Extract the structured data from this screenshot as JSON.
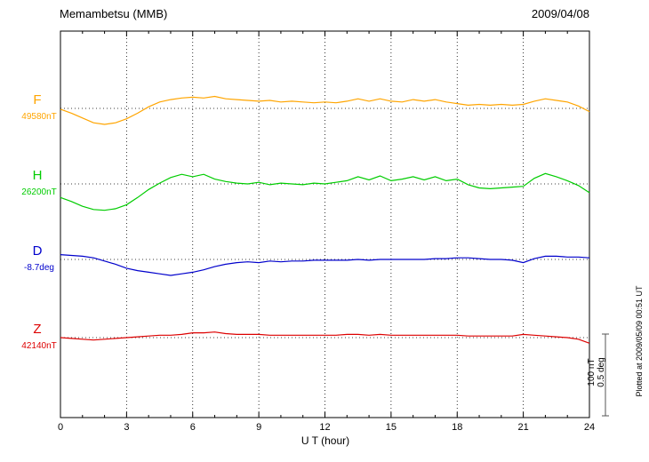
{
  "header": {
    "title": "Memambetsu (MMB)",
    "date": "2009/04/08"
  },
  "axis": {
    "xlabel": "U T (hour)"
  },
  "scale_bar": {
    "label_nt": "100 nT",
    "label_deg": "0.5 deg"
  },
  "footer_note": "Plotted at 2009/05/09 00:51 UT",
  "chart_data": {
    "type": "line",
    "title": "Memambetsu (MMB) magnetogram 2009/04/08",
    "xlabel": "U T (hour)",
    "x_range": [
      0,
      24
    ],
    "x_ticks": [
      0,
      3,
      6,
      9,
      12,
      15,
      18,
      21,
      24
    ],
    "sample_interval_hours": 0.5,
    "grid": "dotted vertical at 3-hour intervals, dotted horizontal baseline per trace",
    "scale_divisions": {
      "nT_per_division": 100,
      "deg_per_division": 0.5
    },
    "series": [
      {
        "name": "F",
        "unit": "nT",
        "base": 49580,
        "base_label": "49580nT",
        "color": "#FFA500",
        "units_per_division": 100,
        "values": [
          49579,
          49574,
          49568,
          49562,
          49560,
          49562,
          49567,
          49574,
          49582,
          49588,
          49591,
          49593,
          49594,
          49593,
          49595,
          49592,
          49591,
          49590,
          49589,
          49590,
          49588,
          49589,
          49588,
          49587,
          49588,
          49587,
          49589,
          49592,
          49589,
          49592,
          49589,
          49588,
          49591,
          49589,
          49591,
          49588,
          49586,
          49584,
          49585,
          49584,
          49585,
          49584,
          49585,
          49589,
          49592,
          49590,
          49588,
          49583,
          49576
        ]
      },
      {
        "name": "H",
        "unit": "nT",
        "base": 26200,
        "base_label": "26200nT",
        "color": "#00CC00",
        "units_per_division": 100,
        "values": [
          26183,
          26178,
          26172,
          26168,
          26167,
          26169,
          26174,
          26183,
          26193,
          26201,
          26208,
          26212,
          26209,
          26212,
          26206,
          26203,
          26201,
          26200,
          26202,
          26199,
          26201,
          26200,
          26199,
          26201,
          26200,
          26202,
          26204,
          26209,
          26205,
          26210,
          26204,
          26206,
          26209,
          26205,
          26209,
          26204,
          26206,
          26199,
          26195,
          26194,
          26195,
          26196,
          26197,
          26207,
          26213,
          26209,
          26204,
          26198,
          26189
        ]
      },
      {
        "name": "D",
        "unit": "deg",
        "base": -8.7,
        "base_label": "-8.7deg",
        "color": "#0000CC",
        "units_per_division": 0.5,
        "values": [
          -8.67,
          -8.675,
          -8.68,
          -8.69,
          -8.71,
          -8.73,
          -8.755,
          -8.77,
          -8.78,
          -8.79,
          -8.8,
          -8.79,
          -8.78,
          -8.765,
          -8.745,
          -8.73,
          -8.72,
          -8.715,
          -8.72,
          -8.71,
          -8.715,
          -8.71,
          -8.71,
          -8.705,
          -8.705,
          -8.705,
          -8.705,
          -8.7,
          -8.705,
          -8.7,
          -8.7,
          -8.7,
          -8.7,
          -8.7,
          -8.695,
          -8.695,
          -8.69,
          -8.69,
          -8.695,
          -8.7,
          -8.7,
          -8.705,
          -8.72,
          -8.695,
          -8.68,
          -8.68,
          -8.685,
          -8.685,
          -8.69
        ]
      },
      {
        "name": "Z",
        "unit": "nT",
        "base": 42140,
        "base_label": "42140nT",
        "color": "#DD0000",
        "units_per_division": 100,
        "values": [
          42140,
          42139,
          42138,
          42137,
          42138,
          42139,
          42140,
          42141,
          42142,
          42143,
          42143,
          42144,
          42146,
          42146,
          42147,
          42145,
          42144,
          42144,
          42144,
          42143,
          42143,
          42143,
          42143,
          42143,
          42143,
          42143,
          42144,
          42144,
          42143,
          42144,
          42143,
          42143,
          42143,
          42143,
          42143,
          42143,
          42143,
          42142,
          42142,
          42142,
          42142,
          42142,
          42144,
          42143,
          42142,
          42141,
          42140,
          42138,
          42133
        ]
      }
    ]
  }
}
